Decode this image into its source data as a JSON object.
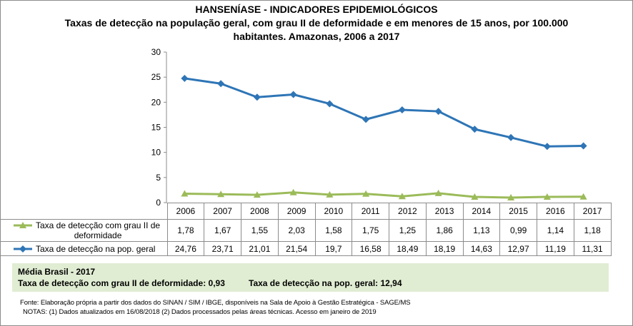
{
  "header": {
    "title": "HANSENÍASE - INDICADORES EPIDEMIOLÓGICOS",
    "subtitle_line1": "Taxas de detecção na população geral, com grau II de deformidade e em menores de 15 anos, por 100.000",
    "subtitle_line2": "habitantes. Amazonas, 2006 a 2017"
  },
  "chart_data": {
    "type": "line",
    "title": "Taxas de detecção na população geral, com grau II de deformidade e em menores de 15 anos, por 100.000 habitantes. Amazonas, 2006 a 2017",
    "categories": [
      "2006",
      "2007",
      "2008",
      "2009",
      "2010",
      "2011",
      "2012",
      "2013",
      "2014",
      "2015",
      "2016",
      "2017"
    ],
    "ylim": [
      0,
      30
    ],
    "yticks": [
      "0",
      "5",
      "10",
      "15",
      "20",
      "25",
      "30"
    ],
    "series": [
      {
        "name_line1": "Taxa de detecção com grau II de",
        "name_line2": "deformidade",
        "color": "#9bbb59",
        "marker": "triangle",
        "values": [
          1.78,
          1.67,
          1.55,
          2.03,
          1.58,
          1.75,
          1.25,
          1.86,
          1.13,
          0.99,
          1.14,
          1.18
        ],
        "labels": [
          "1,78",
          "1,67",
          "1,55",
          "2,03",
          "1,58",
          "1,75",
          "1,25",
          "1,86",
          "1,13",
          "0,99",
          "1,14",
          "1,18"
        ]
      },
      {
        "name_line1": "Taxa de detecção na pop. geral",
        "name_line2": "",
        "color": "#2e75b6",
        "marker": "diamond",
        "values": [
          24.76,
          23.71,
          21.01,
          21.54,
          19.7,
          16.58,
          18.49,
          18.19,
          14.63,
          12.97,
          11.19,
          11.31
        ],
        "labels": [
          "24,76",
          "23,71",
          "21,01",
          "21,54",
          "19,7",
          "16,58",
          "18,49",
          "18,19",
          "14,63",
          "12,97",
          "11,19",
          "11,31"
        ]
      }
    ]
  },
  "brazil_panel": {
    "heading": "Média Brasil - 2017",
    "grade2_label": "Taxa  de detecção com grau II de deformidade: 0,93",
    "general_label": "Taxa de detecção na pop. geral: 12,94"
  },
  "footer": {
    "source": "Fonte:  Elaboração própria a partir dos dados do  SINAN / SIM / IBGE, disponíveis na Sala de Apoio à Gestão Estratégica -  SAGE/MS",
    "notes": "NOTAS: (1) Dados atualizados em 16/08/2018 (2) Dados processados pelas áreas técnicas. Acesso em janeiro de 2019"
  }
}
